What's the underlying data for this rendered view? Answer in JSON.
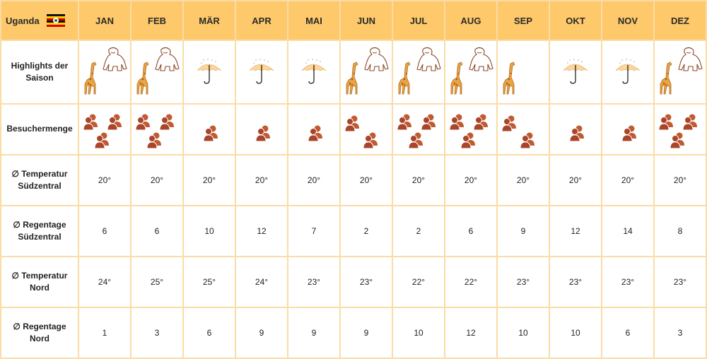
{
  "header": {
    "country": "Uganda",
    "months": [
      "JAN",
      "FEB",
      "MÄR",
      "APR",
      "MAI",
      "JUN",
      "JUL",
      "AUG",
      "SEP",
      "OKT",
      "NOV",
      "DEZ"
    ]
  },
  "rows": [
    {
      "label": "Highlights der Saison"
    },
    {
      "label": "Besuchermenge",
      "values": [
        3,
        3,
        1,
        1,
        1,
        2,
        3,
        3,
        2,
        1,
        1,
        3
      ]
    },
    {
      "label": "∅ Temperatur Südzentral",
      "values": [
        "20°",
        "20°",
        "20°",
        "20°",
        "20°",
        "20°",
        "20°",
        "20°",
        "20°",
        "20°",
        "20°",
        "20°"
      ]
    },
    {
      "label": "∅ Regentage Südzentral",
      "values": [
        "6",
        "6",
        "10",
        "12",
        "7",
        "2",
        "2",
        "6",
        "9",
        "12",
        "14",
        "8"
      ]
    },
    {
      "label": "∅ Temperatur Nord",
      "values": [
        "24°",
        "25°",
        "25°",
        "24°",
        "23°",
        "23°",
        "22°",
        "22°",
        "23°",
        "23°",
        "23°",
        "23°"
      ]
    },
    {
      "label": "∅ Regentage Nord",
      "values": [
        "1",
        "3",
        "6",
        "9",
        "9",
        "9",
        "10",
        "12",
        "10",
        "10",
        "6",
        "3"
      ]
    }
  ]
}
